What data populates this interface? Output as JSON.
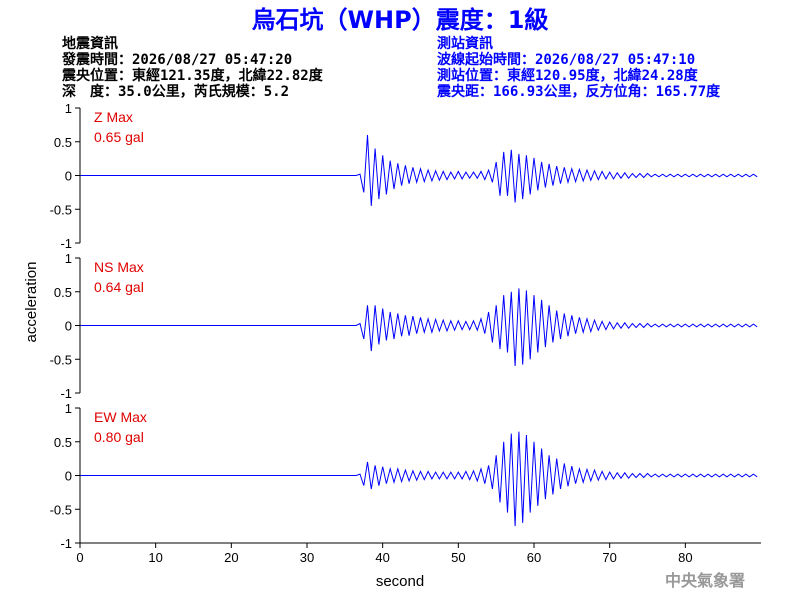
{
  "chart_data": {
    "type": "line",
    "title": "烏石坑（WHP）震度：1級",
    "info_left": [
      "地震資訊",
      "發震時間：2026/08/27 05:47:20",
      "震央位置：東經121.35度，北緯22.82度",
      "深　度：35.0公里，芮氏規模：5.2"
    ],
    "info_right": [
      "測站資訊",
      "波線起始時間：2026/08/27 05:47:10",
      "測站位置：東經120.95度，北緯24.28度",
      "震央距：166.93公里，反方位角：165.77度"
    ],
    "xlabel": "second",
    "ylabel": "acceleration",
    "footer": "中央氣象署",
    "xlim": [
      0,
      90
    ],
    "xticks": [
      0,
      10,
      20,
      30,
      40,
      50,
      60,
      70,
      80
    ],
    "ylim": [
      -1,
      1
    ],
    "yticks": [
      1,
      0.5,
      0,
      -0.5,
      -1
    ],
    "x": [
      0,
      36.5,
      37,
      37.5,
      38,
      38.5,
      39,
      39.5,
      40,
      40.5,
      41,
      41.5,
      42,
      42.5,
      43,
      43.5,
      44,
      44.5,
      45,
      45.5,
      46,
      46.5,
      47,
      47.5,
      48,
      48.5,
      49,
      49.5,
      50,
      50.5,
      51,
      51.5,
      52,
      52.5,
      53,
      53.5,
      54,
      54.5,
      55,
      55.5,
      56,
      56.5,
      57,
      57.5,
      58,
      58.5,
      59,
      59.5,
      60,
      60.5,
      61,
      61.5,
      62,
      62.5,
      63,
      63.5,
      64,
      64.5,
      65,
      65.5,
      66,
      66.5,
      67,
      67.5,
      68,
      68.5,
      69,
      69.5,
      70,
      70.5,
      71,
      71.5,
      72,
      72.5,
      73,
      73.5,
      74,
      74.5,
      75,
      75.5,
      76,
      76.5,
      77,
      77.5,
      78,
      78.5,
      79,
      79.5,
      80,
      80.5,
      81,
      81.5,
      82,
      82.5,
      83,
      83.5,
      84,
      84.5,
      85,
      85.5,
      86,
      86.5,
      87,
      87.5,
      88,
      88.5,
      89,
      89.5
    ],
    "series": [
      {
        "name": "Z Max",
        "max_label": "0.65 gal",
        "color": "#0000ff",
        "values": [
          0,
          0,
          0.02,
          -0.25,
          0.6,
          -0.45,
          0.4,
          -0.35,
          0.3,
          -0.28,
          0.22,
          -0.2,
          0.18,
          -0.15,
          0.15,
          -0.12,
          0.12,
          -0.1,
          0.1,
          -0.09,
          0.08,
          -0.08,
          0.07,
          -0.07,
          0.06,
          -0.06,
          0.05,
          -0.05,
          0.06,
          -0.05,
          0.05,
          -0.04,
          0.05,
          -0.04,
          0.06,
          -0.06,
          0.08,
          -0.1,
          0.2,
          -0.3,
          0.35,
          -0.3,
          0.38,
          -0.4,
          0.32,
          -0.35,
          0.3,
          -0.28,
          0.26,
          -0.22,
          0.2,
          -0.18,
          0.17,
          -0.15,
          0.14,
          -0.12,
          0.12,
          -0.1,
          0.1,
          -0.09,
          0.09,
          -0.08,
          0.08,
          -0.07,
          0.07,
          -0.06,
          0.06,
          -0.05,
          0.05,
          -0.05,
          0.04,
          -0.04,
          0.04,
          -0.04,
          0.03,
          -0.03,
          0.03,
          -0.03,
          0.03,
          -0.02,
          0.02,
          -0.02,
          0.02,
          -0.02,
          0.02,
          -0.02,
          0.02,
          -0.02,
          0.02,
          -0.02,
          0.02,
          -0.02,
          0.02,
          -0.02,
          0.02,
          -0.02,
          0.02,
          -0.02,
          0.02,
          -0.02,
          0.02,
          -0.02,
          0.02,
          -0.02,
          0.02,
          -0.02,
          0.02,
          -0.02
        ]
      },
      {
        "name": "NS Max",
        "max_label": "0.64 gal",
        "color": "#0000ff",
        "values": [
          0,
          0,
          0.03,
          -0.2,
          0.3,
          -0.38,
          0.3,
          -0.28,
          0.25,
          -0.22,
          0.2,
          -0.2,
          0.18,
          -0.16,
          0.15,
          -0.15,
          0.14,
          -0.12,
          0.12,
          -0.1,
          0.1,
          -0.1,
          0.09,
          -0.08,
          0.08,
          -0.08,
          0.07,
          -0.07,
          0.07,
          -0.06,
          0.06,
          -0.06,
          0.07,
          -0.07,
          0.1,
          -0.12,
          0.2,
          -0.25,
          0.3,
          -0.35,
          0.45,
          -0.4,
          0.5,
          -0.6,
          0.55,
          -0.58,
          0.52,
          -0.5,
          0.45,
          -0.4,
          0.38,
          -0.32,
          0.3,
          -0.25,
          0.22,
          -0.2,
          0.18,
          -0.16,
          0.15,
          -0.12,
          0.12,
          -0.1,
          0.1,
          -0.09,
          0.08,
          -0.07,
          0.06,
          -0.06,
          0.05,
          -0.05,
          0.04,
          -0.04,
          0.04,
          -0.04,
          0.03,
          -0.03,
          0.03,
          -0.03,
          0.03,
          -0.02,
          0.02,
          -0.02,
          0.02,
          -0.02,
          0.02,
          -0.02,
          0.02,
          -0.02,
          0.02,
          -0.02,
          0.02,
          -0.02,
          0.02,
          -0.02,
          0.02,
          -0.02,
          0.02,
          -0.02,
          0.02,
          -0.02,
          0.02,
          -0.02,
          0.02,
          -0.02,
          0.02,
          -0.02,
          0.02,
          -0.02
        ]
      },
      {
        "name": "EW Max",
        "max_label": "0.80 gal",
        "color": "#0000ff",
        "values": [
          0,
          0,
          0.02,
          -0.15,
          0.2,
          -0.2,
          0.15,
          -0.15,
          0.13,
          -0.12,
          0.1,
          -0.1,
          0.1,
          -0.09,
          0.08,
          -0.08,
          0.07,
          -0.07,
          0.06,
          -0.06,
          0.06,
          -0.05,
          0.05,
          -0.05,
          0.05,
          -0.05,
          0.05,
          -0.05,
          0.05,
          -0.05,
          0.06,
          -0.06,
          0.07,
          -0.08,
          0.1,
          -0.12,
          0.15,
          -0.2,
          0.3,
          -0.4,
          0.5,
          -0.55,
          0.62,
          -0.75,
          0.65,
          -0.7,
          0.6,
          -0.55,
          0.5,
          -0.45,
          0.4,
          -0.35,
          0.3,
          -0.28,
          0.25,
          -0.2,
          0.18,
          -0.16,
          0.14,
          -0.12,
          0.1,
          -0.1,
          0.09,
          -0.08,
          0.08,
          -0.07,
          0.06,
          -0.06,
          0.05,
          -0.05,
          0.04,
          -0.04,
          0.04,
          -0.04,
          0.03,
          -0.03,
          0.03,
          -0.03,
          0.03,
          -0.02,
          0.02,
          -0.02,
          0.02,
          -0.02,
          0.02,
          -0.02,
          0.02,
          -0.02,
          0.02,
          -0.02,
          0.02,
          -0.02,
          0.02,
          -0.02,
          0.02,
          -0.02,
          0.02,
          -0.02,
          0.02,
          -0.02,
          0.02,
          -0.02,
          0.02,
          -0.02,
          0.02,
          -0.02,
          0.02,
          -0.02
        ]
      }
    ]
  }
}
